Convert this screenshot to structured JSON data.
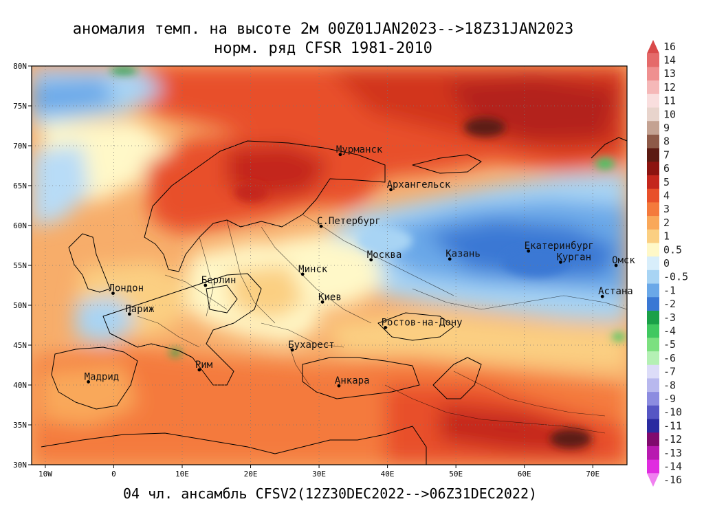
{
  "title": {
    "line1": "аномалия темп. на высоте 2м 00Z01JAN2023-->18Z31JAN2023",
    "line2": "норм. ряд CFSR 1981-2010"
  },
  "footer": "04 чл. ансамбль CFSV2(12Z30DEC2022-->06Z31DEC2022)",
  "map": {
    "lon_range": [
      -12,
      75
    ],
    "lat_range": [
      30,
      80
    ],
    "lat_ticks": [
      {
        "v": 80,
        "t": "80N"
      },
      {
        "v": 75,
        "t": "75N"
      },
      {
        "v": 70,
        "t": "70N"
      },
      {
        "v": 65,
        "t": "65N"
      },
      {
        "v": 60,
        "t": "60N"
      },
      {
        "v": 55,
        "t": "55N"
      },
      {
        "v": 50,
        "t": "50N"
      },
      {
        "v": 45,
        "t": "45N"
      },
      {
        "v": 40,
        "t": "40N"
      },
      {
        "v": 35,
        "t": "35N"
      },
      {
        "v": 30,
        "t": "30N"
      }
    ],
    "lon_ticks": [
      {
        "v": -10,
        "t": "10W"
      },
      {
        "v": 0,
        "t": "0"
      },
      {
        "v": 10,
        "t": "10E"
      },
      {
        "v": 20,
        "t": "20E"
      },
      {
        "v": 30,
        "t": "30E"
      },
      {
        "v": 40,
        "t": "40E"
      },
      {
        "v": 50,
        "t": "50E"
      },
      {
        "v": 60,
        "t": "60E"
      },
      {
        "v": 70,
        "t": "70E"
      }
    ],
    "cities": [
      {
        "name": "Мурманск",
        "lon": 33.1,
        "lat": 68.9
      },
      {
        "name": "Архангельск",
        "lon": 40.5,
        "lat": 64.5
      },
      {
        "name": "С.Петербург",
        "lon": 30.3,
        "lat": 59.9
      },
      {
        "name": "Москва",
        "lon": 37.6,
        "lat": 55.7
      },
      {
        "name": "Казань",
        "lon": 49.1,
        "lat": 55.8
      },
      {
        "name": "Екатеринбург",
        "lon": 60.6,
        "lat": 56.8
      },
      {
        "name": "Курган",
        "lon": 65.3,
        "lat": 55.4
      },
      {
        "name": "Омск",
        "lon": 73.4,
        "lat": 55.0
      },
      {
        "name": "Астана",
        "lon": 71.4,
        "lat": 51.1
      },
      {
        "name": "Минск",
        "lon": 27.6,
        "lat": 53.9
      },
      {
        "name": "Киев",
        "lon": 30.5,
        "lat": 50.4
      },
      {
        "name": "Берлин",
        "lon": 13.4,
        "lat": 52.5
      },
      {
        "name": "Лондон",
        "lon": -0.1,
        "lat": 51.5
      },
      {
        "name": "Париж",
        "lon": 2.3,
        "lat": 48.9
      },
      {
        "name": "Ростов-на-Дону",
        "lon": 39.7,
        "lat": 47.2
      },
      {
        "name": "Бухарест",
        "lon": 26.1,
        "lat": 44.4
      },
      {
        "name": "Рим",
        "lon": 12.5,
        "lat": 41.9
      },
      {
        "name": "Мадрид",
        "lon": -3.7,
        "lat": 40.4
      },
      {
        "name": "Анкара",
        "lon": 32.9,
        "lat": 39.9
      }
    ],
    "anomaly_regions": [
      {
        "level": "warm_4",
        "color": "#e8502a",
        "desc": "Scandinavia / Kola"
      },
      {
        "level": "warm_5",
        "color": "#c4271d",
        "desc": "Barents-Kara Sea"
      },
      {
        "level": "cold_1",
        "color": "#5a90e0",
        "desc": "Volga-Urals-Western Siberia"
      },
      {
        "level": "cold_05",
        "color": "#b8dcf7",
        "desc": "Central Russia"
      },
      {
        "level": "neutral",
        "color": "#fff8c8",
        "desc": "Eastern Europe"
      },
      {
        "level": "warm_1",
        "color": "#f9a85a",
        "desc": "Western and Southern Europe"
      }
    ]
  },
  "colorbar": {
    "labels": [
      "16",
      "14",
      "13",
      "12",
      "11",
      "10",
      "9",
      "8",
      "7",
      "6",
      "5",
      "4",
      "3",
      "2",
      "1",
      "0.5",
      "0",
      "-0.5",
      "-1",
      "-2",
      "-3",
      "-4",
      "-5",
      "-6",
      "-7",
      "-8",
      "-9",
      "-10",
      "-11",
      "-12",
      "-13",
      "-14",
      "-16"
    ],
    "colors": [
      "#d94a4a",
      "#e56a6a",
      "#ef9090",
      "#f5b8b8",
      "#f9dede",
      "#e8d4cc",
      "#c4a292",
      "#8e5a48",
      "#5c1a12",
      "#8c1410",
      "#c4271d",
      "#e8502a",
      "#f47a3c",
      "#f9a85a",
      "#fbcf82",
      "#fff8c8",
      "#d8eefb",
      "#a8d4f4",
      "#6aa8e8",
      "#3a78d4",
      "#1aa048",
      "#40c860",
      "#7ce080",
      "#b4f0b4",
      "#dcdcf8",
      "#b8b8ee",
      "#8c8ce0",
      "#5656c4",
      "#2a2aa0",
      "#800a6e",
      "#b81ab0",
      "#e02ce0",
      "#f080f0"
    ]
  }
}
